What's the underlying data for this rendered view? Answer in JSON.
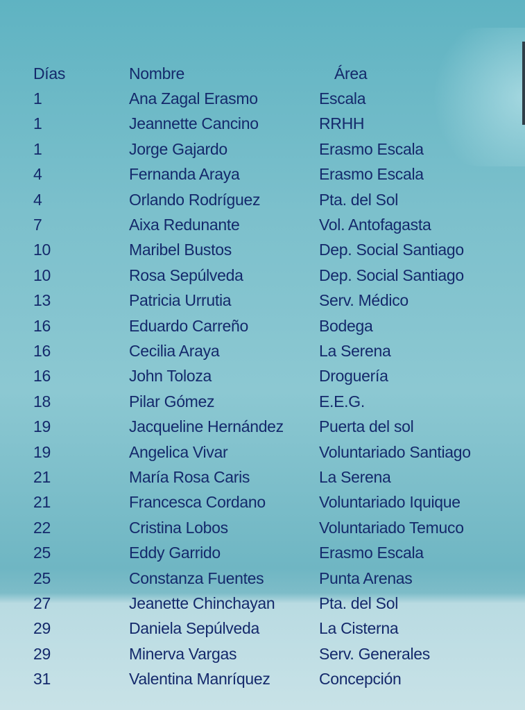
{
  "headers": {
    "dias": "Días",
    "nombre": "Nombre",
    "area": "Área"
  },
  "rows": [
    {
      "dia": "1",
      "nombre": "Ana Zagal   Erasmo",
      "area": "Escala"
    },
    {
      "dia": "1",
      "nombre": "Jeannette Cancino",
      "area": "RRHH"
    },
    {
      "dia": "1",
      "nombre": "Jorge Gajardo",
      "area": "Erasmo Escala"
    },
    {
      "dia": "4",
      "nombre": "Fernanda Araya",
      "area": "Erasmo Escala"
    },
    {
      "dia": "4",
      "nombre": "Orlando Rodríguez",
      "area": "Pta. del Sol"
    },
    {
      "dia": "7",
      "nombre": "Aixa Redunante",
      "area": "Vol. Antofagasta"
    },
    {
      "dia": "10",
      "nombre": "Maribel Bustos",
      "area": "Dep. Social Santiago"
    },
    {
      "dia": "10",
      "nombre": "Rosa Sepúlveda",
      "area": "Dep. Social Santiago"
    },
    {
      "dia": "13",
      "nombre": "Patricia Urrutia",
      "area": "Serv. Médico"
    },
    {
      "dia": "16",
      "nombre": "Eduardo Carreño",
      "area": "Bodega"
    },
    {
      "dia": "16",
      "nombre": "Cecilia Araya",
      "area": "La Serena"
    },
    {
      "dia": "16",
      "nombre": "John Toloza",
      "area": "Droguería"
    },
    {
      "dia": "18",
      "nombre": "Pilar Gómez",
      "area": "E.E.G."
    },
    {
      "dia": "19",
      "nombre": "Jacqueline Hernández",
      "area": "Puerta del sol"
    },
    {
      "dia": "19",
      "nombre": "Angelica Vivar",
      "area": "Voluntariado Santiago"
    },
    {
      "dia": "21",
      "nombre": "María Rosa Caris",
      "area": "La Serena"
    },
    {
      "dia": "21",
      "nombre": "Francesca Cordano",
      "area": "Voluntariado Iquique"
    },
    {
      "dia": "22",
      "nombre": "Cristina Lobos",
      "area": "Voluntariado Temuco"
    },
    {
      "dia": "25",
      "nombre": "Eddy Garrido",
      "area": "Erasmo Escala"
    },
    {
      "dia": "25",
      "nombre": "Constanza Fuentes",
      "area": "Punta Arenas"
    },
    {
      "dia": "27",
      "nombre": "Jeanette Chinchayan",
      "area": "Pta. del Sol"
    },
    {
      "dia": "29",
      "nombre": "Daniela Sepúlveda",
      "area": "La Cisterna"
    },
    {
      "dia": "29",
      "nombre": "Minerva Vargas",
      "area": "Serv. Generales"
    },
    {
      "dia": "31",
      "nombre": "Valentina Manríquez",
      "area": "Concepción"
    }
  ],
  "colors": {
    "text": "#14296b",
    "background": "#7cc0cc"
  }
}
